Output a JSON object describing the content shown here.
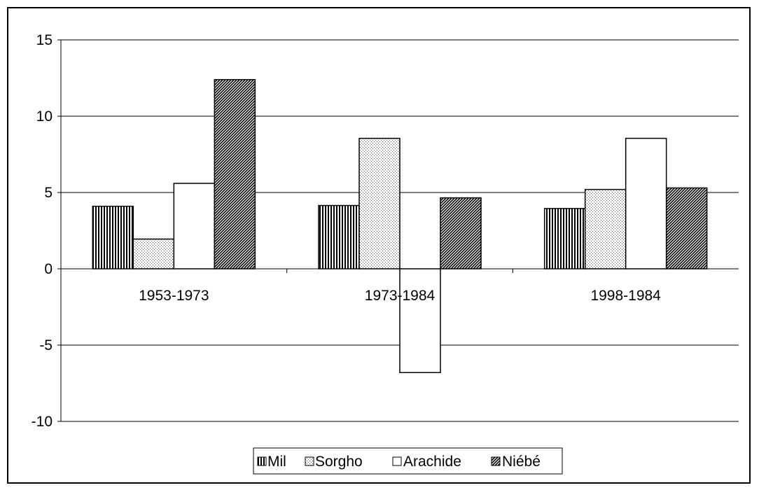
{
  "chart_data": {
    "type": "bar",
    "title": "",
    "xlabel": "",
    "ylabel": "",
    "categories": [
      "1953-1973",
      "1973-1984",
      "1998-1984"
    ],
    "series": [
      {
        "name": "Mil",
        "values": [
          4.1,
          4.15,
          3.95
        ],
        "pattern": "vertical-stripes"
      },
      {
        "name": "Sorgho",
        "values": [
          1.95,
          8.55,
          5.2
        ],
        "pattern": "dots"
      },
      {
        "name": "Arachide",
        "values": [
          5.6,
          -6.8,
          8.55
        ],
        "pattern": "none"
      },
      {
        "name": "Niébé",
        "values": [
          12.4,
          4.65,
          5.3
        ],
        "pattern": "dense-diagonal"
      }
    ],
    "ylim": [
      -10,
      15
    ],
    "yticks": [
      15,
      10,
      5,
      0,
      -5,
      -10
    ],
    "grid": true,
    "legend_position": "bottom"
  },
  "colors": {
    "background": "#ffffff",
    "bar_stroke": "#000000",
    "gridline": "#000000"
  }
}
